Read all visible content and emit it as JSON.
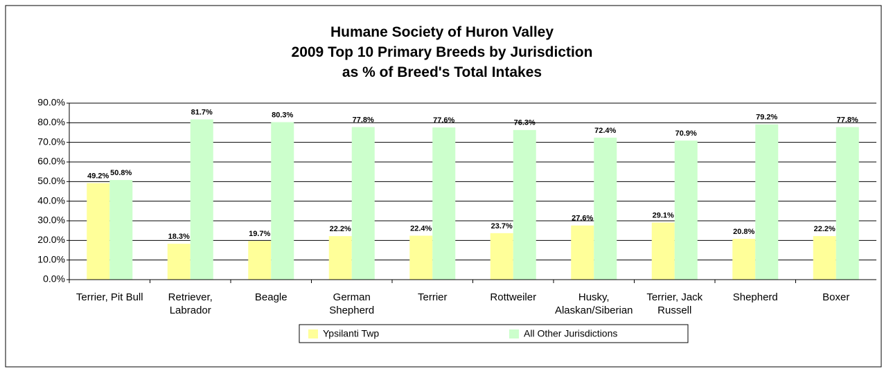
{
  "chart_data": {
    "type": "bar",
    "title": "Humane Society of Huron Valley\n2009 Top 10 Primary Breeds by Jurisdiction\nas % of Breed's Total Intakes",
    "categories": [
      "Terrier, Pit Bull",
      "Retriever,\nLabrador",
      "Beagle",
      "German\nShepherd",
      "Terrier",
      "Rottweiler",
      "Husky,\nAlaskan/Siberian",
      "Terrier, Jack\nRussell",
      "Shepherd",
      "Boxer"
    ],
    "series": [
      {
        "name": "Ypsilanti Twp",
        "color": "#ffff99",
        "values": [
          49.2,
          18.3,
          19.7,
          22.2,
          22.4,
          23.7,
          27.6,
          29.1,
          20.8,
          22.2
        ],
        "value_labels": [
          "49.2%",
          "18.3%",
          "19.7%",
          "22.2%",
          "22.4%",
          "23.7%",
          "27.6%",
          "29.1%",
          "20.8%",
          "22.2%"
        ]
      },
      {
        "name": "All Other Jurisdictions",
        "color": "#ccffcc",
        "values": [
          50.8,
          81.7,
          80.3,
          77.8,
          77.6,
          76.3,
          72.4,
          70.9,
          79.2,
          77.8
        ],
        "value_labels": [
          "50.8%",
          "81.7%",
          "80.3%",
          "77.8%",
          "77.6%",
          "76.3%",
          "72.4%",
          "70.9%",
          "79.2%",
          "77.8%"
        ]
      }
    ],
    "ylim": [
      0,
      90
    ],
    "yticks": [
      {
        "value": 0,
        "label": "0.0%"
      },
      {
        "value": 10,
        "label": "10.0%"
      },
      {
        "value": 20,
        "label": "20.0%"
      },
      {
        "value": 30,
        "label": "30.0%"
      },
      {
        "value": 40,
        "label": "40.0%"
      },
      {
        "value": 50,
        "label": "50.0%"
      },
      {
        "value": 60,
        "label": "60.0%"
      },
      {
        "value": 70,
        "label": "70.0%"
      },
      {
        "value": 80,
        "label": "80.0%"
      },
      {
        "value": 90,
        "label": "90.0%"
      }
    ],
    "grid": true,
    "legend": "bottom"
  }
}
